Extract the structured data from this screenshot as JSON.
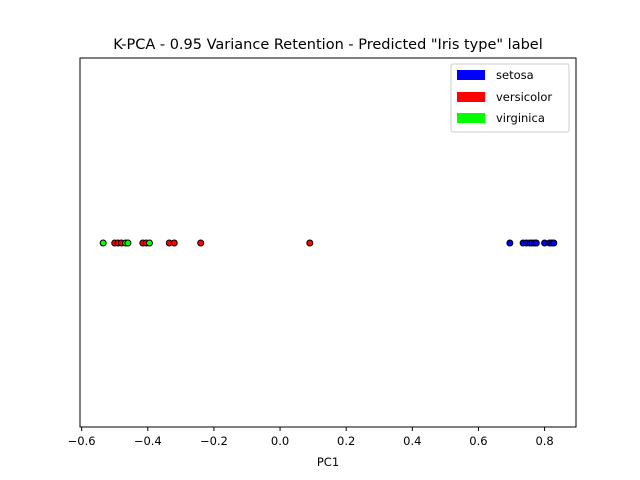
{
  "chart_data": {
    "type": "scatter",
    "title": "K-PCA - 0.95 Variance Retention - Predicted \"Iris type\" label",
    "xlabel": "PC1",
    "ylabel": "",
    "xlim": [
      -0.605,
      0.895
    ],
    "x_ticks": [
      -0.6,
      -0.4,
      -0.2,
      0.0,
      0.2,
      0.4,
      0.6,
      0.8
    ],
    "x_tick_labels": [
      "−0.6",
      "−0.4",
      "−0.2",
      "0.0",
      "0.2",
      "0.4",
      "0.6",
      "0.8"
    ],
    "y_ticks_visible": false,
    "grid": false,
    "legend_position": "top-right",
    "series": [
      {
        "name": "setosa",
        "color": "#0000ff",
        "x": [
          0.695,
          0.735,
          0.745,
          0.755,
          0.762,
          0.77,
          0.775,
          0.8,
          0.815,
          0.822,
          0.828
        ]
      },
      {
        "name": "versicolor",
        "color": "#ff0000",
        "x": [
          -0.5,
          -0.49,
          -0.48,
          -0.415,
          -0.405,
          -0.335,
          -0.32,
          -0.24,
          0.09
        ]
      },
      {
        "name": "virginica",
        "color": "#00ff00",
        "x": [
          -0.535,
          -0.467,
          -0.46,
          -0.395
        ]
      }
    ]
  }
}
